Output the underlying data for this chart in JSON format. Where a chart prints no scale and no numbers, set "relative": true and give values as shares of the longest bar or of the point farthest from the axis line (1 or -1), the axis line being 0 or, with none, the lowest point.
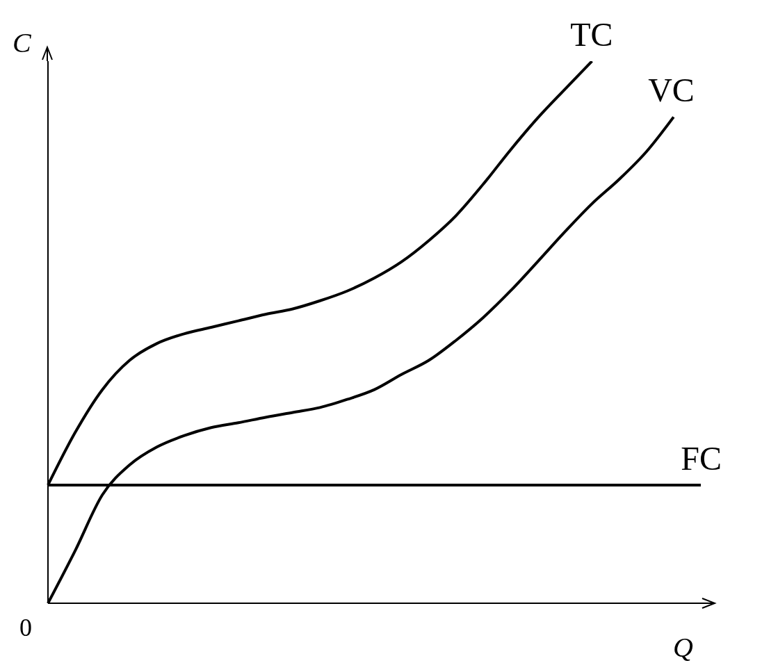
{
  "chart_data": {
    "type": "line",
    "relative": true,
    "xlabel": "Q",
    "ylabel": "C",
    "annotations": [
      "0"
    ],
    "categories": [
      null,
      null,
      null,
      null,
      null,
      null,
      null,
      null,
      null,
      null,
      null,
      null,
      null,
      null,
      null,
      null,
      null,
      null,
      null,
      null,
      null,
      null,
      null,
      null,
      null
    ],
    "series": [
      {
        "name": "TC",
        "color": "#000000",
        "values": [
          0.218,
          0.315,
          0.394,
          0.448,
          0.479,
          0.497,
          0.509,
          0.521,
          0.533,
          0.543,
          0.558,
          0.576,
          0.6,
          0.63,
          0.669,
          0.715,
          0.773,
          0.836,
          0.895,
          0.948,
          1,
          null,
          null,
          null,
          null
        ]
      },
      {
        "name": "VC",
        "color": "#000000",
        "values": [
          0,
          0.097,
          0.2,
          0.255,
          0.288,
          0.309,
          0.324,
          0.333,
          0.343,
          0.352,
          0.361,
          0.376,
          0.394,
          0.422,
          0.448,
          0.485,
          0.527,
          0.576,
          0.63,
          0.685,
          0.737,
          0.782,
          0.833,
          0.897,
          null
        ]
      },
      {
        "name": "FC",
        "color": "#000000",
        "values": [
          0.218,
          0.218,
          0.218,
          0.218,
          0.218,
          0.218,
          0.218,
          0.218,
          0.218,
          0.218,
          0.218,
          0.218,
          0.218,
          0.218,
          0.218,
          0.218,
          0.218,
          0.218,
          0.218,
          0.218,
          0.218,
          0.218,
          0.218,
          0.218,
          0.218
        ]
      }
    ],
    "grid": false,
    "legend": false,
    "marker": "none",
    "line_style": "solid"
  }
}
